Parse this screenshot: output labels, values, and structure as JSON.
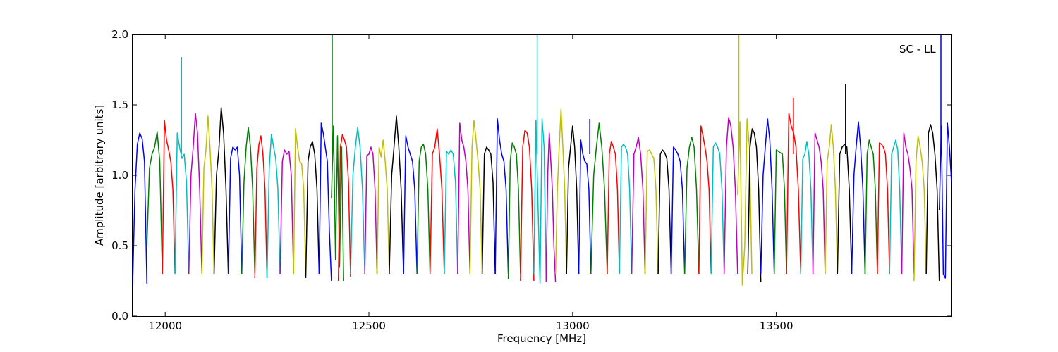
{
  "chart_data": {
    "type": "line",
    "title": "",
    "annotation": "SC - LL",
    "xlabel": "Frequency [MHz]",
    "ylabel": "Amplitude [arbitrary units]",
    "xlim": [
      11920,
      13930
    ],
    "ylim": [
      0.0,
      2.0
    ],
    "xticks": [
      12000,
      12500,
      13000,
      13500
    ],
    "xtick_labels": [
      "12000",
      "12500",
      "13000",
      "13500"
    ],
    "yticks": [
      0.0,
      0.5,
      1.0,
      1.5,
      2.0
    ],
    "ytick_labels": [
      "0.0",
      "0.5",
      "1.0",
      "1.5",
      "2.0"
    ],
    "grid": false,
    "legend": "none",
    "colors": [
      "#0000ff",
      "#008000",
      "#ff0000",
      "#00bfbf",
      "#bf00bf",
      "#bfbf00",
      "#000000"
    ],
    "series": [
      {
        "color": "#0000ff",
        "x0": 11920,
        "x1": 11955,
        "values": [
          0.22,
          0.9,
          1.22,
          1.3,
          1.26,
          1.1,
          0.23
        ],
        "spikes": []
      },
      {
        "color": "#008000",
        "x0": 11955,
        "x1": 11993,
        "values": [
          0.5,
          1.05,
          1.15,
          1.2,
          1.31,
          1.1,
          0.3
        ],
        "spikes": []
      },
      {
        "color": "#ff0000",
        "x0": 11993,
        "x1": 12024,
        "values": [
          0.3,
          1.39,
          1.25,
          1.18,
          1.1,
          0.9,
          0.3
        ],
        "spikes": []
      },
      {
        "color": "#00bfbf",
        "x0": 12024,
        "x1": 12058,
        "values": [
          0.3,
          1.3,
          1.2,
          1.12,
          1.15,
          0.95,
          0.3
        ],
        "spikes": [
          {
            "x": 12040,
            "y": 1.84
          }
        ]
      },
      {
        "color": "#bf00bf",
        "x0": 12058,
        "x1": 12090,
        "values": [
          0.3,
          1.0,
          1.2,
          1.44,
          1.3,
          0.9,
          0.3
        ],
        "spikes": []
      },
      {
        "color": "#bfbf00",
        "x0": 12090,
        "x1": 12120,
        "values": [
          0.3,
          1.05,
          1.18,
          1.42,
          1.2,
          0.9,
          0.3
        ],
        "spikes": []
      },
      {
        "color": "#000000",
        "x0": 12120,
        "x1": 12155,
        "values": [
          0.3,
          1.0,
          1.18,
          1.48,
          1.3,
          0.9,
          0.3
        ],
        "spikes": []
      },
      {
        "color": "#0000ff",
        "x0": 12155,
        "x1": 12188,
        "values": [
          0.3,
          1.12,
          1.2,
          1.18,
          1.2,
          1.0,
          0.3
        ],
        "spikes": []
      },
      {
        "color": "#008000",
        "x0": 12188,
        "x1": 12220,
        "values": [
          0.3,
          0.95,
          1.2,
          1.34,
          1.2,
          0.9,
          0.3
        ],
        "spikes": []
      },
      {
        "color": "#ff0000",
        "x0": 12220,
        "x1": 12250,
        "values": [
          0.27,
          1.05,
          1.22,
          1.28,
          1.15,
          0.9,
          0.27
        ],
        "spikes": []
      },
      {
        "color": "#00bfbf",
        "x0": 12250,
        "x1": 12282,
        "values": [
          0.27,
          1.05,
          1.29,
          1.2,
          1.12,
          0.9,
          0.3
        ],
        "spikes": []
      },
      {
        "color": "#bf00bf",
        "x0": 12282,
        "x1": 12315,
        "values": [
          0.3,
          1.1,
          1.18,
          1.15,
          1.17,
          1.0,
          0.3
        ],
        "spikes": []
      },
      {
        "color": "#bfbf00",
        "x0": 12315,
        "x1": 12345,
        "values": [
          0.3,
          1.33,
          1.2,
          1.1,
          1.08,
          0.9,
          0.3
        ],
        "spikes": []
      },
      {
        "color": "#000000",
        "x0": 12345,
        "x1": 12378,
        "values": [
          0.27,
          1.1,
          1.2,
          1.24,
          1.15,
          0.9,
          0.3
        ],
        "spikes": []
      },
      {
        "color": "#0000ff",
        "x0": 12378,
        "x1": 12408,
        "values": [
          0.3,
          1.37,
          1.3,
          1.2,
          1.1,
          0.6,
          0.25
        ],
        "spikes": []
      },
      {
        "color": "#008000",
        "x0": 12408,
        "x1": 12438,
        "values": [
          0.84,
          1.35,
          0.4,
          1.28,
          0.35,
          1.2,
          0.25
        ],
        "spikes": [
          {
            "x": 12410,
            "y": 2.0
          }
        ]
      },
      {
        "color": "#ff0000",
        "x0": 12425,
        "x1": 12455,
        "values": [
          0.25,
          1.2,
          1.29,
          1.25,
          1.2,
          0.95,
          0.28
        ],
        "spikes": []
      },
      {
        "color": "#00bfbf",
        "x0": 12455,
        "x1": 12490,
        "values": [
          0.3,
          1.0,
          1.2,
          1.34,
          1.2,
          0.9,
          0.3
        ],
        "spikes": []
      },
      {
        "color": "#bf00bf",
        "x0": 12490,
        "x1": 12520,
        "values": [
          0.3,
          1.14,
          1.15,
          1.2,
          1.15,
          0.9,
          0.3
        ],
        "spikes": []
      },
      {
        "color": "#bfbf00",
        "x0": 12520,
        "x1": 12550,
        "values": [
          0.3,
          1.2,
          1.13,
          1.25,
          1.1,
          0.9,
          0.3
        ],
        "spikes": []
      },
      {
        "color": "#000000",
        "x0": 12550,
        "x1": 12585,
        "values": [
          0.3,
          1.0,
          1.2,
          1.42,
          1.2,
          0.9,
          0.3
        ],
        "spikes": []
      },
      {
        "color": "#0000ff",
        "x0": 12585,
        "x1": 12618,
        "values": [
          0.3,
          1.28,
          1.2,
          1.15,
          1.1,
          0.9,
          0.3
        ],
        "spikes": []
      },
      {
        "color": "#008000",
        "x0": 12618,
        "x1": 12650,
        "values": [
          0.3,
          1.1,
          1.2,
          1.22,
          1.15,
          0.9,
          0.3
        ],
        "spikes": []
      },
      {
        "color": "#ff0000",
        "x0": 12650,
        "x1": 12685,
        "values": [
          0.3,
          1.15,
          1.2,
          1.33,
          1.15,
          0.9,
          0.3
        ],
        "spikes": []
      },
      {
        "color": "#00bfbf",
        "x0": 12685,
        "x1": 12718,
        "values": [
          0.3,
          1.17,
          1.15,
          1.18,
          1.15,
          0.95,
          0.3
        ],
        "spikes": []
      },
      {
        "color": "#bf00bf",
        "x0": 12718,
        "x1": 12748,
        "values": [
          0.3,
          1.37,
          1.25,
          1.2,
          1.1,
          0.9,
          0.3
        ],
        "spikes": []
      },
      {
        "color": "#bfbf00",
        "x0": 12748,
        "x1": 12778,
        "values": [
          0.3,
          1.2,
          1.39,
          1.25,
          1.1,
          0.9,
          0.3
        ],
        "spikes": []
      },
      {
        "color": "#000000",
        "x0": 12778,
        "x1": 12810,
        "values": [
          0.3,
          1.15,
          1.2,
          1.18,
          1.15,
          0.95,
          0.3
        ],
        "spikes": []
      },
      {
        "color": "#0000ff",
        "x0": 12810,
        "x1": 12842,
        "values": [
          0.3,
          1.4,
          1.25,
          1.15,
          1.1,
          0.9,
          0.3
        ],
        "spikes": []
      },
      {
        "color": "#008000",
        "x0": 12842,
        "x1": 12872,
        "values": [
          0.26,
          1.1,
          1.23,
          1.2,
          1.15,
          0.9,
          0.3
        ],
        "spikes": []
      },
      {
        "color": "#ff0000",
        "x0": 12872,
        "x1": 12905,
        "values": [
          0.25,
          1.2,
          1.32,
          1.3,
          1.2,
          0.9,
          0.25
        ],
        "spikes": []
      },
      {
        "color": "#00bfbf",
        "x0": 12905,
        "x1": 12935,
        "values": [
          0.3,
          1.39,
          0.8,
          0.23,
          1.4,
          1.2,
          0.26
        ],
        "spikes": [
          {
            "x": 12913,
            "y": 2.0
          }
        ]
      },
      {
        "color": "#bf00bf",
        "x0": 12935,
        "x1": 12958,
        "values": [
          0.24,
          1.0,
          1.3,
          1.1,
          0.9,
          0.5,
          0.24
        ],
        "spikes": []
      },
      {
        "color": "#bfbf00",
        "x0": 12958,
        "x1": 12985,
        "values": [
          0.3,
          0.9,
          1.2,
          1.47,
          1.2,
          0.9,
          0.3
        ],
        "spikes": []
      },
      {
        "color": "#000000",
        "x0": 12985,
        "x1": 13015,
        "values": [
          0.3,
          1.05,
          1.2,
          1.35,
          1.2,
          0.9,
          0.3
        ],
        "spikes": []
      },
      {
        "color": "#0000ff",
        "x0": 13015,
        "x1": 13045,
        "values": [
          0.3,
          1.25,
          1.15,
          1.1,
          1.08,
          0.9,
          0.3
        ],
        "spikes": [
          {
            "x": 13042,
            "y": 1.4
          }
        ]
      },
      {
        "color": "#008000",
        "x0": 13045,
        "x1": 13085,
        "values": [
          0.3,
          1.0,
          1.2,
          1.37,
          1.2,
          0.9,
          0.3
        ],
        "spikes": []
      },
      {
        "color": "#ff0000",
        "x0": 13085,
        "x1": 13115,
        "values": [
          0.3,
          1.15,
          1.24,
          1.2,
          1.15,
          0.9,
          0.3
        ],
        "spikes": []
      },
      {
        "color": "#00bfbf",
        "x0": 13115,
        "x1": 13145,
        "values": [
          0.3,
          1.2,
          1.22,
          1.2,
          1.15,
          0.9,
          0.3
        ],
        "spikes": []
      },
      {
        "color": "#bf00bf",
        "x0": 13145,
        "x1": 13178,
        "values": [
          0.3,
          1.15,
          1.2,
          1.27,
          1.15,
          0.9,
          0.3
        ],
        "spikes": []
      },
      {
        "color": "#bfbf00",
        "x0": 13178,
        "x1": 13210,
        "values": [
          0.3,
          1.17,
          1.18,
          1.15,
          1.12,
          0.9,
          0.3
        ],
        "spikes": []
      },
      {
        "color": "#000000",
        "x0": 13210,
        "x1": 13242,
        "values": [
          0.3,
          1.15,
          1.18,
          1.16,
          1.12,
          0.9,
          0.3
        ],
        "spikes": []
      },
      {
        "color": "#0000ff",
        "x0": 13242,
        "x1": 13275,
        "values": [
          0.3,
          1.2,
          1.18,
          1.15,
          1.1,
          0.9,
          0.3
        ],
        "spikes": []
      },
      {
        "color": "#008000",
        "x0": 13275,
        "x1": 13310,
        "values": [
          0.3,
          1.05,
          1.2,
          1.27,
          1.2,
          0.9,
          0.3
        ],
        "spikes": []
      },
      {
        "color": "#ff0000",
        "x0": 13310,
        "x1": 13340,
        "values": [
          0.3,
          1.35,
          1.28,
          1.2,
          1.1,
          0.9,
          0.3
        ],
        "spikes": []
      },
      {
        "color": "#00bfbf",
        "x0": 13340,
        "x1": 13372,
        "values": [
          0.3,
          1.2,
          1.23,
          1.2,
          1.15,
          0.9,
          0.3
        ],
        "spikes": []
      },
      {
        "color": "#bf00bf",
        "x0": 13372,
        "x1": 13405,
        "values": [
          0.3,
          1.2,
          1.41,
          1.35,
          1.2,
          0.9,
          0.3
        ],
        "spikes": []
      },
      {
        "color": "#bfbf00",
        "x0": 13405,
        "x1": 13440,
        "values": [
          0.86,
          1.38,
          0.22,
          0.5,
          1.4,
          1.2,
          0.3
        ],
        "spikes": [
          {
            "x": 13408,
            "y": 2.0
          }
        ]
      },
      {
        "color": "#000000",
        "x0": 13430,
        "x1": 13462,
        "values": [
          0.3,
          1.2,
          1.33,
          1.3,
          1.2,
          0.9,
          0.24
        ],
        "spikes": []
      },
      {
        "color": "#0000ff",
        "x0": 13462,
        "x1": 13495,
        "values": [
          0.3,
          1.0,
          1.2,
          1.4,
          1.25,
          0.9,
          0.3
        ],
        "spikes": []
      },
      {
        "color": "#008000",
        "x0": 13495,
        "x1": 13525,
        "values": [
          0.3,
          1.18,
          1.17,
          1.16,
          1.15,
          0.9,
          0.3
        ],
        "spikes": []
      },
      {
        "color": "#ff0000",
        "x0": 13525,
        "x1": 13560,
        "values": [
          0.3,
          1.44,
          1.35,
          1.3,
          1.2,
          0.9,
          0.3
        ],
        "spikes": [
          {
            "x": 13542,
            "y": 1.55
          }
        ]
      },
      {
        "color": "#00bfbf",
        "x0": 13560,
        "x1": 13590,
        "values": [
          0.3,
          1.12,
          1.15,
          1.24,
          1.15,
          0.9,
          0.3
        ],
        "spikes": []
      },
      {
        "color": "#bf00bf",
        "x0": 13590,
        "x1": 13620,
        "values": [
          0.3,
          1.3,
          1.25,
          1.2,
          1.1,
          0.9,
          0.3
        ],
        "spikes": []
      },
      {
        "color": "#bfbf00",
        "x0": 13620,
        "x1": 13650,
        "values": [
          0.3,
          1.1,
          1.2,
          1.36,
          1.2,
          0.9,
          0.3
        ],
        "spikes": []
      },
      {
        "color": "#000000",
        "x0": 13650,
        "x1": 13685,
        "values": [
          0.3,
          1.15,
          1.2,
          1.22,
          1.2,
          0.9,
          0.3
        ],
        "spikes": [
          {
            "x": 13670,
            "y": 1.65
          }
        ]
      },
      {
        "color": "#0000ff",
        "x0": 13685,
        "x1": 13718,
        "values": [
          0.3,
          1.0,
          1.2,
          1.38,
          1.2,
          0.9,
          0.3
        ],
        "spikes": []
      },
      {
        "color": "#008000",
        "x0": 13718,
        "x1": 13748,
        "values": [
          0.3,
          1.15,
          1.25,
          1.2,
          1.15,
          0.9,
          0.3
        ],
        "spikes": []
      },
      {
        "color": "#ff0000",
        "x0": 13748,
        "x1": 13778,
        "values": [
          0.3,
          1.23,
          1.22,
          1.2,
          1.15,
          0.9,
          0.3
        ],
        "spikes": []
      },
      {
        "color": "#00bfbf",
        "x0": 13778,
        "x1": 13808,
        "values": [
          0.3,
          1.15,
          1.2,
          1.25,
          1.18,
          0.9,
          0.3
        ],
        "spikes": []
      },
      {
        "color": "#bf00bf",
        "x0": 13808,
        "x1": 13838,
        "values": [
          0.3,
          1.3,
          1.2,
          1.15,
          1.05,
          0.9,
          0.3
        ],
        "spikes": []
      },
      {
        "color": "#bfbf00",
        "x0": 13838,
        "x1": 13868,
        "values": [
          0.25,
          1.1,
          1.28,
          1.2,
          1.1,
          0.9,
          0.3
        ],
        "spikes": []
      },
      {
        "color": "#000000",
        "x0": 13868,
        "x1": 13900,
        "values": [
          0.3,
          1.3,
          1.36,
          1.3,
          1.15,
          0.9,
          0.25
        ],
        "spikes": []
      },
      {
        "color": "#0000ff",
        "x0": 13900,
        "x1": 13930,
        "values": [
          0.75,
          1.35,
          0.3,
          0.27,
          1.37,
          1.2,
          0.95
        ],
        "spikes": [
          {
            "x": 13904,
            "y": 2.0
          }
        ]
      }
    ]
  }
}
